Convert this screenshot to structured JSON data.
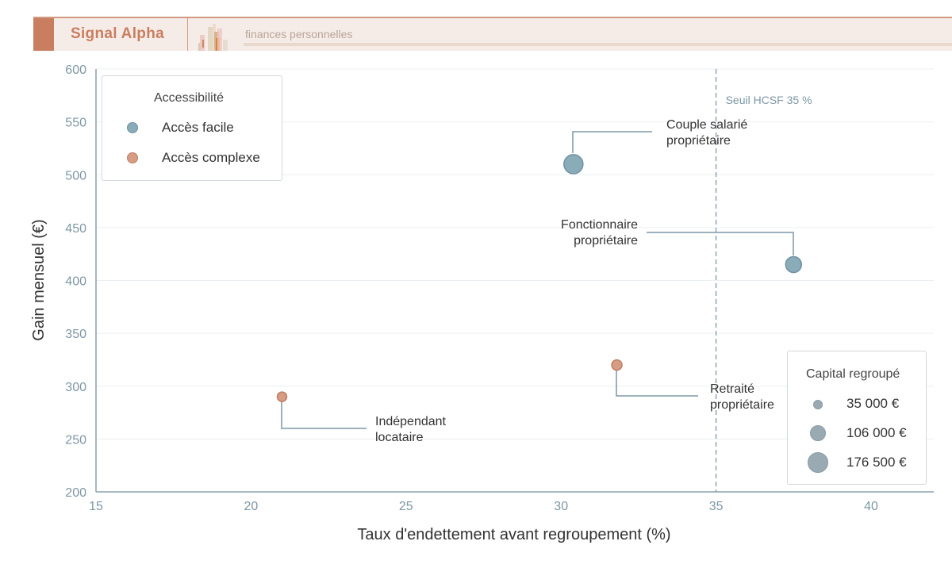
{
  "header": {
    "brand": "Signal Alpha",
    "subtitle": "finances personnelles",
    "logo_icon": "bar-chart-logo-icon",
    "colors": {
      "brand": "#c97e60",
      "background": "#f6ece7"
    }
  },
  "legend_color": {
    "title": "Accessibilité",
    "items": [
      {
        "label": "Accès facile",
        "color": "#8aabb8",
        "stroke": "#6f93a3"
      },
      {
        "label": "Accès complexe",
        "color": "#d69c84",
        "stroke": "#bf7f64"
      }
    ]
  },
  "legend_size": {
    "title": "Capital regroupé",
    "items": [
      {
        "label": "35 000 €",
        "r": 6
      },
      {
        "label": "106 000 €",
        "r": 10
      },
      {
        "label": "176 500 €",
        "r": 13
      }
    ]
  },
  "threshold": {
    "label": "Seuil HCSF 35 %",
    "x": 35
  },
  "chart_data": {
    "type": "scatter",
    "title": "",
    "xlabel": "Taux d'endettement avant regroupement (%)",
    "ylabel": "Gain mensuel (€)",
    "xlim": [
      15,
      42
    ],
    "ylim": [
      200,
      600
    ],
    "xticks": [
      15,
      20,
      25,
      30,
      35,
      40
    ],
    "yticks": [
      200,
      250,
      300,
      350,
      400,
      450,
      500,
      550,
      600
    ],
    "grid": "horizontal",
    "legend_position": "upper-left (color), lower-right (size)",
    "series": [
      {
        "name": "Accès facile",
        "color": "#8aabb8",
        "points": [
          {
            "label": "Couple salarié propriétaire",
            "x": 30.4,
            "y": 510,
            "capital": 176500
          },
          {
            "label": "Fonctionnaire propriétaire",
            "x": 37.5,
            "y": 415,
            "capital": 106000
          }
        ]
      },
      {
        "name": "Accès complexe",
        "color": "#d69c84",
        "points": [
          {
            "label": "Indépendant locataire",
            "x": 21.0,
            "y": 290,
            "capital": 35000
          },
          {
            "label": "Retraité propriétaire",
            "x": 31.8,
            "y": 320,
            "capital": 42000
          }
        ]
      }
    ],
    "annotations": [
      {
        "text": [
          "Couple salarié",
          "propriétaire"
        ]
      },
      {
        "text": [
          "Fonctionnaire",
          "propriétaire"
        ]
      },
      {
        "text": [
          "Indépendant",
          "locataire"
        ]
      },
      {
        "text": [
          "Retraité",
          "propriétaire"
        ]
      },
      {
        "text": [
          "Seuil HCSF 35 %"
        ]
      }
    ]
  }
}
